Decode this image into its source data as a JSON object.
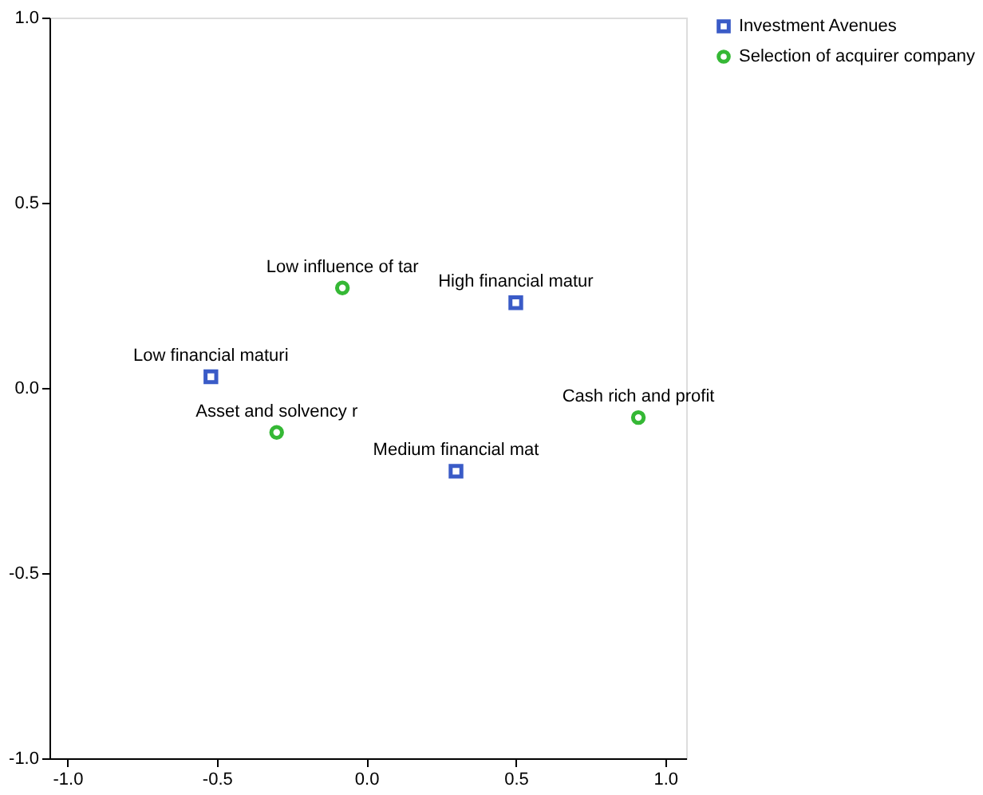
{
  "chart_data": {
    "type": "scatter",
    "xlim": [
      -1.06,
      1.07
    ],
    "ylim": [
      -1.0,
      1.0
    ],
    "xticks": [
      {
        "value": -1,
        "label": "-1.0"
      },
      {
        "value": -0.5,
        "label": "-0.5"
      },
      {
        "value": 0,
        "label": "0.0"
      },
      {
        "value": 0.5,
        "label": "0.5"
      },
      {
        "value": 1,
        "label": "1.0"
      }
    ],
    "yticks": [
      {
        "value": -1,
        "label": "-1.0"
      },
      {
        "value": -0.5,
        "label": "-0.5"
      },
      {
        "value": 0,
        "label": "0.0"
      },
      {
        "value": 0.5,
        "label": "0.5"
      },
      {
        "value": 1,
        "label": "1.0"
      }
    ],
    "grid": false,
    "legend": "top right",
    "series": [
      {
        "name": "Investment Avenues",
        "color": "#3a5bc7",
        "marker": "square",
        "x": [
          -0.52,
          0.5,
          0.3
        ],
        "values": [
          0.03,
          0.23,
          -0.225
        ]
      },
      {
        "name": "Selection of acquirer company",
        "color": "#35b835",
        "marker": "circle",
        "x": [
          -0.08,
          -0.3,
          0.91
        ],
        "values": [
          0.27,
          -0.12,
          -0.08
        ]
      }
    ],
    "annotations": [
      {
        "text": "Low financial maturi",
        "x": -0.52,
        "y": 0.03
      },
      {
        "text": "High financial matur",
        "x": 0.5,
        "y": 0.23
      },
      {
        "text": "Medium financial mat",
        "x": 0.3,
        "y": -0.225
      },
      {
        "text": "Low influence of tar",
        "x": -0.08,
        "y": 0.27
      },
      {
        "text": "Asset and solvency r",
        "x": -0.3,
        "y": -0.12
      },
      {
        "text": "Cash rich and profit",
        "x": 0.91,
        "y": -0.08
      }
    ]
  }
}
